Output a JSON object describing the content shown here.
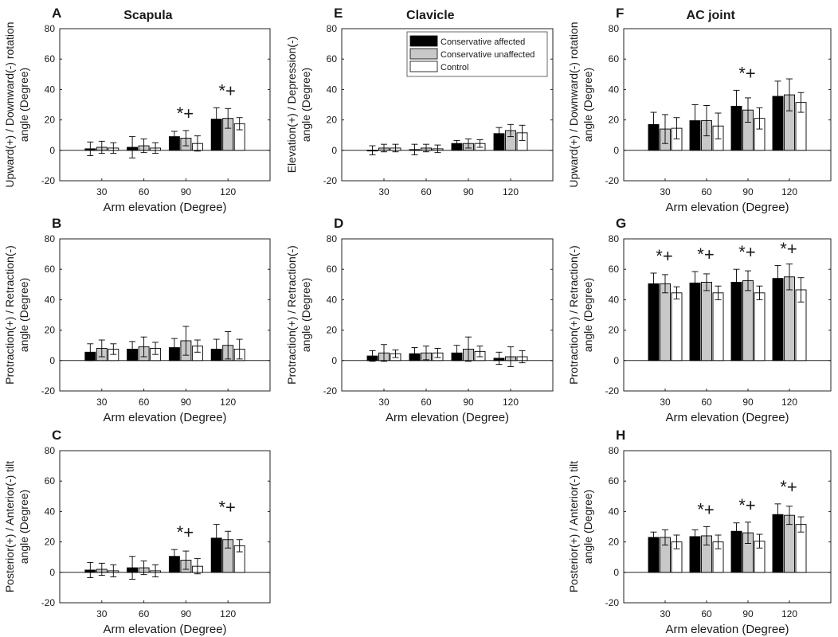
{
  "groups": [
    {
      "name": "Conservative affected",
      "color": "#000000"
    },
    {
      "name": "Conservative unaffected",
      "color": "#c8c8c8"
    },
    {
      "name": "Control",
      "color": "#ffffff"
    }
  ],
  "chart_data": [
    {
      "type": "bar",
      "letter": "A",
      "title": "Scapula",
      "ylabel": [
        "Upward(+) / Downward(-) rotation",
        "angle (Degree)"
      ],
      "xlabel": "Arm elevation (Degree)",
      "categories": [
        "30",
        "60",
        "90",
        "120"
      ],
      "ylim": [
        -20,
        80
      ],
      "yticks": [
        -20,
        0,
        20,
        40,
        60,
        80
      ],
      "series": [
        {
          "name": "Conservative affected",
          "values": [
            1,
            2,
            9,
            20.5
          ],
          "errors": [
            4.5,
            7,
            3.5,
            7.5
          ]
        },
        {
          "name": "Conservative unaffected",
          "values": [
            2,
            3,
            8,
            21
          ],
          "errors": [
            4,
            4.5,
            5,
            6.5
          ]
        },
        {
          "name": "Control",
          "values": [
            1.5,
            1.5,
            4.5,
            17.5
          ],
          "errors": [
            3.5,
            3.5,
            5,
            4
          ]
        }
      ],
      "annotations": [
        {
          "category": "90",
          "text": "*+"
        },
        {
          "category": "120",
          "text": "*+"
        }
      ]
    },
    {
      "type": "bar",
      "letter": "E",
      "title": "Clavicle",
      "ylabel": [
        "Elevation(+) / Depression(-)",
        "angle (Degree)"
      ],
      "xlabel": "",
      "categories": [
        "30",
        "60",
        "90",
        "120"
      ],
      "ylim": [
        -20,
        80
      ],
      "yticks": [
        -20,
        0,
        20,
        40,
        60,
        80
      ],
      "series": [
        {
          "name": "Conservative affected",
          "values": [
            0,
            0.5,
            4.5,
            11
          ],
          "errors": [
            3,
            3.5,
            2,
            4
          ]
        },
        {
          "name": "Conservative unaffected",
          "values": [
            1.5,
            1.5,
            4.5,
            13
          ],
          "errors": [
            2.5,
            2.5,
            3,
            4
          ]
        },
        {
          "name": "Control",
          "values": [
            1.5,
            1,
            4.5,
            11.5
          ],
          "errors": [
            2.5,
            2.5,
            2.5,
            5
          ]
        }
      ],
      "annotations": [],
      "legend": "top-right"
    },
    {
      "type": "bar",
      "letter": "F",
      "title": "AC joint",
      "ylabel": [
        "Upward(+) / Downward(-) rotation",
        "angle (Degree)"
      ],
      "xlabel": "Arm elevation (Degree)",
      "categories": [
        "30",
        "60",
        "90",
        "120"
      ],
      "ylim": [
        -20,
        80
      ],
      "yticks": [
        -20,
        0,
        20,
        40,
        60,
        80
      ],
      "series": [
        {
          "name": "Conservative affected",
          "values": [
            17,
            19.5,
            29,
            35.5
          ],
          "errors": [
            8,
            10.5,
            10.5,
            10
          ]
        },
        {
          "name": "Conservative unaffected",
          "values": [
            14,
            19.5,
            26.5,
            36.5
          ],
          "errors": [
            9.5,
            10,
            8,
            10.5
          ]
        },
        {
          "name": "Control",
          "values": [
            14.5,
            16,
            21,
            31.5
          ],
          "errors": [
            7,
            8.5,
            7,
            6.5
          ]
        }
      ],
      "annotations": [
        {
          "category": "90",
          "text": "*+"
        }
      ]
    },
    {
      "type": "bar",
      "letter": "B",
      "title": "",
      "ylabel": [
        "Protraction(+) / Retraction(-)",
        "angle (Degree)"
      ],
      "xlabel": "Arm elevation (Degree)",
      "categories": [
        "30",
        "60",
        "90",
        "120"
      ],
      "ylim": [
        -20,
        80
      ],
      "yticks": [
        -20,
        0,
        20,
        40,
        60,
        80
      ],
      "series": [
        {
          "name": "Conservative affected",
          "values": [
            5.5,
            7.5,
            8.5,
            7.5
          ],
          "errors": [
            5.5,
            5,
            6,
            6.5
          ]
        },
        {
          "name": "Conservative unaffected",
          "values": [
            8,
            9,
            13,
            10
          ],
          "errors": [
            5.5,
            6.5,
            9.5,
            9
          ]
        },
        {
          "name": "Control",
          "values": [
            7.5,
            8,
            9.5,
            7.5
          ],
          "errors": [
            3.5,
            4,
            4,
            6.5
          ]
        }
      ],
      "annotations": []
    },
    {
      "type": "bar",
      "letter": "D",
      "title": "",
      "ylabel": [
        "Protraction(+) / Retraction(-)",
        "angle (Degree)"
      ],
      "xlabel": "Arm elevation (Degree)",
      "categories": [
        "30",
        "60",
        "90",
        "120"
      ],
      "ylim": [
        -20,
        80
      ],
      "yticks": [
        -20,
        0,
        20,
        40,
        60,
        80
      ],
      "series": [
        {
          "name": "Conservative affected",
          "values": [
            3,
            4.5,
            5,
            1.5
          ],
          "errors": [
            3.5,
            4,
            5,
            4
          ]
        },
        {
          "name": "Conservative unaffected",
          "values": [
            5,
            5,
            7.5,
            2.5
          ],
          "errors": [
            5.5,
            4.5,
            8,
            6.5
          ]
        },
        {
          "name": "Control",
          "values": [
            4.5,
            5,
            6,
            2.5
          ],
          "errors": [
            2.5,
            3,
            3.5,
            4
          ]
        }
      ],
      "annotations": []
    },
    {
      "type": "bar",
      "letter": "G",
      "title": "",
      "ylabel": [
        "Protraction(+) / Retraction(-)",
        "angle (Degree)"
      ],
      "xlabel": "Arm elevation (Degree)",
      "categories": [
        "30",
        "60",
        "90",
        "120"
      ],
      "ylim": [
        -20,
        80
      ],
      "yticks": [
        -20,
        0,
        20,
        40,
        60,
        80
      ],
      "series": [
        {
          "name": "Conservative affected",
          "values": [
            50.5,
            51,
            51.5,
            54
          ],
          "errors": [
            7,
            7.5,
            8.5,
            8.5
          ]
        },
        {
          "name": "Conservative unaffected",
          "values": [
            50.5,
            51.5,
            52.5,
            55
          ],
          "errors": [
            6,
            5.5,
            6.5,
            8.5
          ]
        },
        {
          "name": "Control",
          "values": [
            44.5,
            44.5,
            44.5,
            46.5
          ],
          "errors": [
            4,
            4.5,
            4.5,
            8
          ]
        }
      ],
      "annotations": [
        {
          "category": "30",
          "text": "*+"
        },
        {
          "category": "60",
          "text": "*+"
        },
        {
          "category": "90",
          "text": "*+"
        },
        {
          "category": "120",
          "text": "*+"
        }
      ]
    },
    {
      "type": "bar",
      "letter": "C",
      "title": "",
      "ylabel": [
        "Posterior(+) / Anterior(-) tilt",
        "angle (Degree)"
      ],
      "xlabel": "Arm elevation (Degree)",
      "categories": [
        "30",
        "60",
        "90",
        "120"
      ],
      "ylim": [
        -20,
        80
      ],
      "yticks": [
        -20,
        0,
        20,
        40,
        60,
        80
      ],
      "series": [
        {
          "name": "Conservative affected",
          "values": [
            1.5,
            3,
            10.5,
            22.5
          ],
          "errors": [
            5,
            7.5,
            4.5,
            9
          ]
        },
        {
          "name": "Conservative unaffected",
          "values": [
            2,
            3,
            8,
            21.5
          ],
          "errors": [
            4,
            4.5,
            6,
            5.5
          ]
        },
        {
          "name": "Control",
          "values": [
            1,
            1,
            4,
            17.5
          ],
          "errors": [
            4,
            4,
            5,
            4
          ]
        }
      ],
      "annotations": [
        {
          "category": "90",
          "text": "*+"
        },
        {
          "category": "120",
          "text": "*+"
        }
      ]
    },
    {
      "type": "bar",
      "letter": "H",
      "title": "",
      "ylabel": [
        "Posterior(+) / Anterior(-) tilt",
        "angle (Degree)"
      ],
      "xlabel": "Arm elevation (Degree)",
      "categories": [
        "30",
        "60",
        "90",
        "120"
      ],
      "ylim": [
        -20,
        80
      ],
      "yticks": [
        -20,
        0,
        20,
        40,
        60,
        80
      ],
      "series": [
        {
          "name": "Conservative affected",
          "values": [
            23,
            23.5,
            27,
            38
          ],
          "errors": [
            3.5,
            4.5,
            5.5,
            7
          ]
        },
        {
          "name": "Conservative unaffected",
          "values": [
            23,
            24,
            26,
            37.5
          ],
          "errors": [
            5,
            6,
            7,
            6
          ]
        },
        {
          "name": "Control",
          "values": [
            20,
            20,
            20.5,
            31.5
          ],
          "errors": [
            4.5,
            4.5,
            4.5,
            5
          ]
        }
      ],
      "annotations": [
        {
          "category": "60",
          "text": "*+"
        },
        {
          "category": "90",
          "text": "*+"
        },
        {
          "category": "120",
          "text": "*+"
        }
      ]
    }
  ]
}
